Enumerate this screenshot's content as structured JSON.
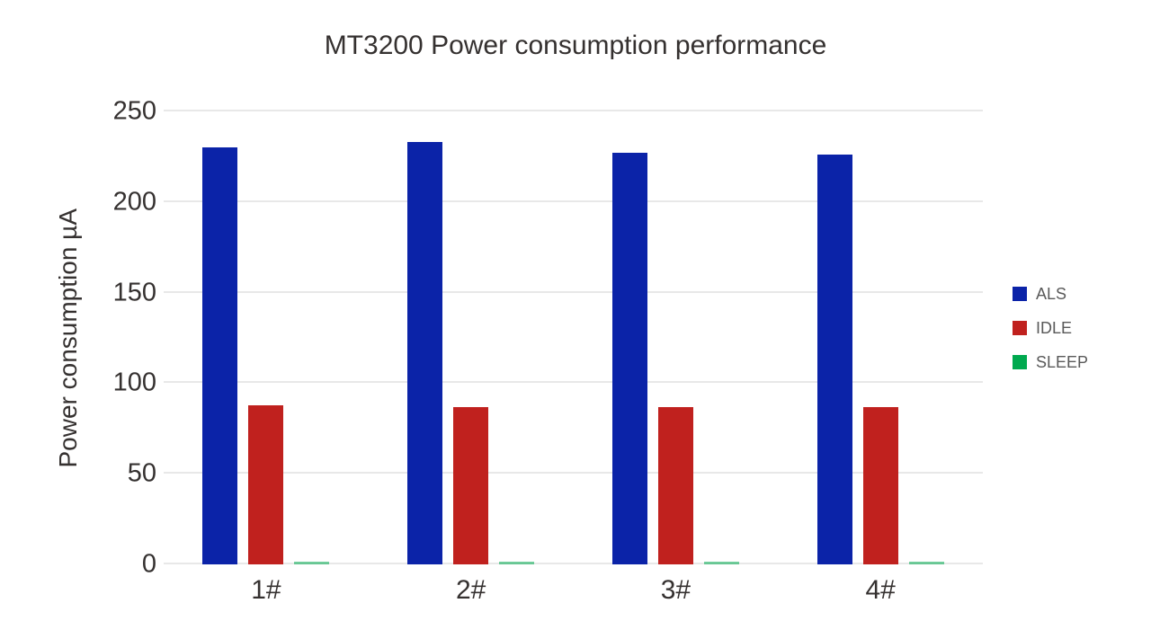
{
  "chart_data": {
    "type": "bar",
    "title": "MT3200 Power consumption performance",
    "xlabel": "",
    "ylabel": "Power consumption µA",
    "categories": [
      "1#",
      "2#",
      "3#",
      "4#"
    ],
    "series": [
      {
        "name": "ALS",
        "color": "#0b23a8",
        "values": [
          230,
          233,
          227,
          226
        ]
      },
      {
        "name": "IDLE",
        "color": "#c0211e",
        "values": [
          88,
          87,
          87,
          87
        ]
      },
      {
        "name": "SLEEP",
        "color": "#00a94f",
        "values": [
          1.5,
          1.5,
          1.5,
          1.5
        ]
      }
    ],
    "ylim": [
      0,
      250
    ],
    "yticks": [
      0,
      50,
      100,
      150,
      200,
      250
    ],
    "grid": true,
    "legend_position": "right",
    "background_color": "#ffffff",
    "gridline_color": "#e8e8e8",
    "text_color": "#353130",
    "legend_text_color": "#595959"
  }
}
